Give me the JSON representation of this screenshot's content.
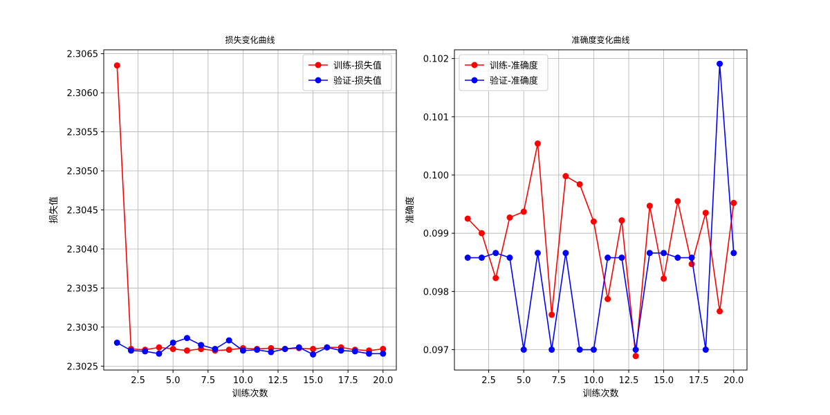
{
  "chart_data": [
    {
      "type": "line",
      "title": "损失变化曲线",
      "xlabel": "训练次数",
      "ylabel": "损失值",
      "xlim": [
        0.05,
        20.95
      ],
      "ylim": [
        2.30245,
        2.30655
      ],
      "xticks": [
        "2.5",
        "5.0",
        "7.5",
        "10.0",
        "12.5",
        "15.0",
        "17.5",
        "20.0"
      ],
      "yticks": [
        "2.3025",
        "2.3030",
        "2.3035",
        "2.3040",
        "2.3045",
        "2.3050",
        "2.3055",
        "2.3060",
        "2.3065"
      ],
      "grid": true,
      "legend_position": "top-right",
      "x": [
        1,
        2,
        3,
        4,
        5,
        6,
        7,
        8,
        9,
        10,
        11,
        12,
        13,
        14,
        15,
        16,
        17,
        18,
        19,
        20
      ],
      "series": [
        {
          "name": "训练-损失值",
          "color": "#ff0000",
          "values": [
            2.30635,
            2.30272,
            2.30271,
            2.30274,
            2.30272,
            2.3027,
            2.30272,
            2.3027,
            2.30271,
            2.30273,
            2.30272,
            2.30273,
            2.30272,
            2.30273,
            2.30272,
            2.30274,
            2.30274,
            2.30271,
            2.3027,
            2.30272
          ]
        },
        {
          "name": "验证-损失值",
          "color": "#0000ff",
          "values": [
            2.3028,
            2.3027,
            2.30269,
            2.30266,
            2.3028,
            2.30286,
            2.30277,
            2.30272,
            2.30283,
            2.3027,
            2.30271,
            2.30268,
            2.30272,
            2.30274,
            2.30265,
            2.30274,
            2.3027,
            2.30269,
            2.30266,
            2.30266
          ]
        }
      ]
    },
    {
      "type": "line",
      "title": "准确度变化曲线",
      "xlabel": "训练次数",
      "ylabel": "准确度",
      "xlim": [
        0.05,
        20.95
      ],
      "ylim": [
        0.09665,
        0.10215
      ],
      "xticks": [
        "2.5",
        "5.0",
        "7.5",
        "10.0",
        "12.5",
        "15.0",
        "17.5",
        "20.0"
      ],
      "yticks": [
        "0.097",
        "0.098",
        "0.099",
        "0.100",
        "0.101",
        "0.102"
      ],
      "grid": true,
      "legend_position": "top-left",
      "x": [
        1,
        2,
        3,
        4,
        5,
        6,
        7,
        8,
        9,
        10,
        11,
        12,
        13,
        14,
        15,
        16,
        17,
        18,
        19,
        20
      ],
      "series": [
        {
          "name": "训练-准确度",
          "color": "#ff0000",
          "values": [
            0.09925,
            0.099,
            0.09823,
            0.09927,
            0.09937,
            0.10054,
            0.0976,
            0.09998,
            0.09984,
            0.0992,
            0.09787,
            0.09922,
            0.09689,
            0.09947,
            0.09822,
            0.09955,
            0.09847,
            0.09935,
            0.09766,
            0.09952
          ]
        },
        {
          "name": "验证-准确度",
          "color": "#0000ff",
          "values": [
            0.09858,
            0.09858,
            0.09866,
            0.09858,
            0.097,
            0.09866,
            0.097,
            0.09866,
            0.097,
            0.097,
            0.09858,
            0.09858,
            0.097,
            0.09866,
            0.09866,
            0.09858,
            0.09858,
            0.097,
            0.10191,
            0.09866
          ]
        }
      ]
    }
  ]
}
